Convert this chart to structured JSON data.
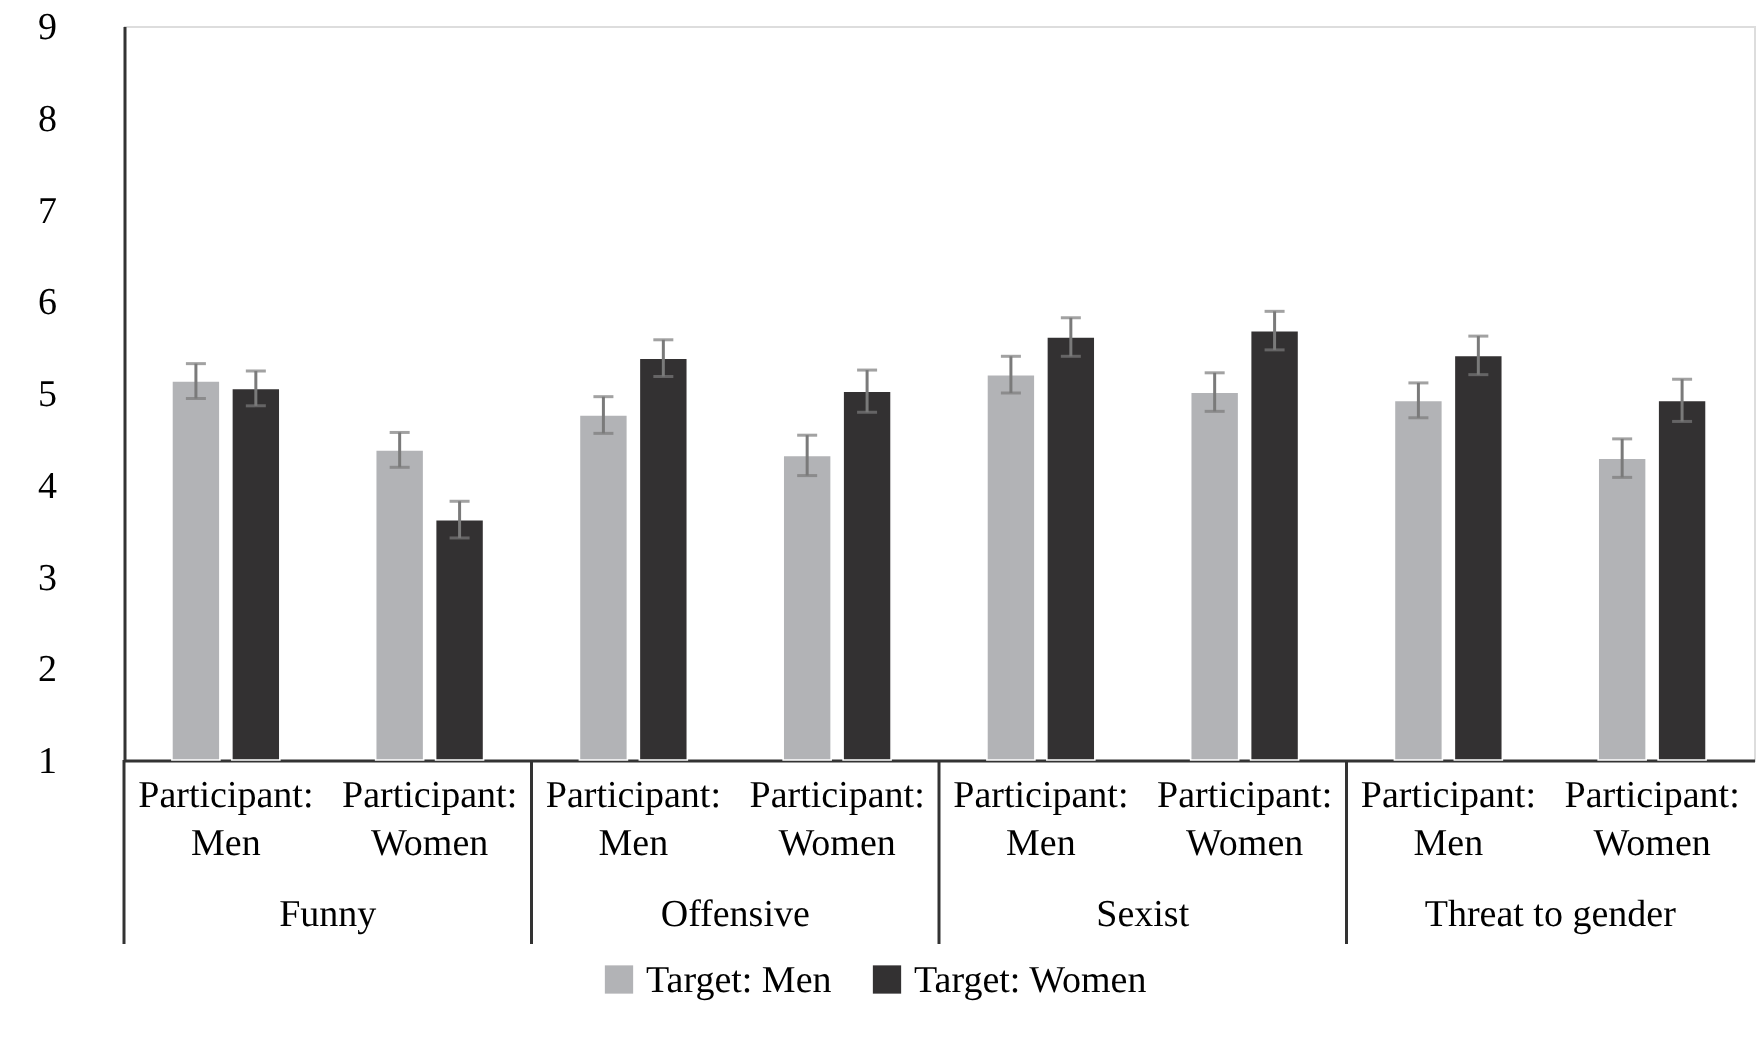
{
  "chart_data": {
    "type": "bar",
    "categories": [
      "Participant: Men",
      "Participant: Women",
      "Participant: Men",
      "Participant: Women",
      "Participant: Men",
      "Participant: Women",
      "Participant: Men",
      "Participant: Women"
    ],
    "annotations": [
      "Funny",
      "Offensive",
      "Sexist",
      "Threat to gender"
    ],
    "series": [
      {
        "name": "Target: Men",
        "color": "#b2b3b6",
        "values": [
          5.13,
          4.38,
          4.76,
          4.32,
          5.2,
          5.01,
          4.92,
          4.29
        ],
        "errors": [
          0.19,
          0.19,
          0.2,
          0.22,
          0.2,
          0.21,
          0.19,
          0.21
        ]
      },
      {
        "name": "Target: Women",
        "color": "#333132",
        "values": [
          5.05,
          3.62,
          5.38,
          5.02,
          5.61,
          5.68,
          5.41,
          4.92
        ],
        "errors": [
          0.19,
          0.2,
          0.2,
          0.23,
          0.21,
          0.21,
          0.21,
          0.23
        ]
      }
    ],
    "ylim": [
      1,
      9
    ],
    "yticks": [
      1,
      2,
      3,
      4,
      5,
      6,
      7,
      8,
      9
    ],
    "grid": false,
    "legend": "bottom"
  }
}
